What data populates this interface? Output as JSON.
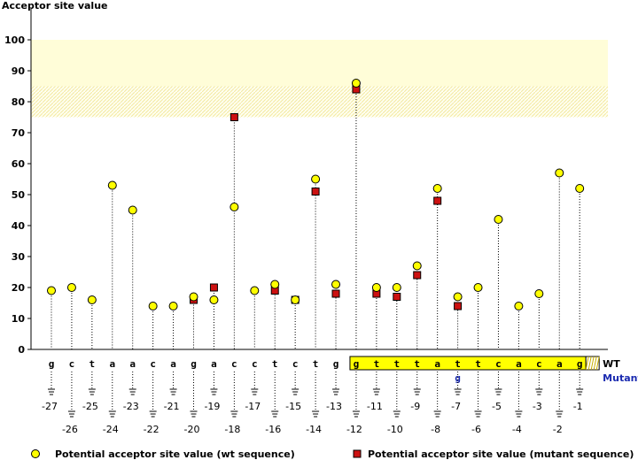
{
  "chart_data": {
    "type": "scatter",
    "title": "",
    "ylabel": "Acceptor site value",
    "xlabel": "",
    "ylim": [
      0,
      100
    ],
    "yticks": [
      0,
      10,
      20,
      30,
      40,
      50,
      60,
      70,
      80,
      90,
      100
    ],
    "highlight_bands": [
      {
        "from": 85,
        "to": 100,
        "style": "solid"
      },
      {
        "from": 75,
        "to": 85,
        "style": "hatched"
      }
    ],
    "positions": [
      -27,
      -26,
      -25,
      -24,
      -23,
      -22,
      -21,
      -20,
      -19,
      -18,
      -17,
      -16,
      -15,
      -14,
      -13,
      -12,
      -11,
      -10,
      -9,
      -8,
      -7,
      -6,
      -5,
      -4,
      -3,
      -2,
      -1
    ],
    "wt_sequence": [
      "g",
      "c",
      "t",
      "a",
      "a",
      "c",
      "a",
      "g",
      "a",
      "c",
      "c",
      "t",
      "c",
      "t",
      "g",
      "g",
      "t",
      "t",
      "t",
      "a",
      "t",
      "t",
      "c",
      "a",
      "c",
      "a",
      "g"
    ],
    "mutant_sequence": [
      "",
      "",
      "",
      "",
      "",
      "",
      "",
      "",
      "",
      "",
      "",
      "",
      "",
      "",
      "",
      "",
      "",
      "",
      "",
      "",
      "g",
      "",
      "",
      "",
      "",
      "",
      ""
    ],
    "series": [
      {
        "name": "Potential acceptor site value (wt sequence)",
        "marker": "circle",
        "color": "#ffff00",
        "values": [
          19,
          20,
          16,
          53,
          45,
          14,
          14,
          17,
          16,
          46,
          19,
          21,
          16,
          55,
          21,
          86,
          20,
          20,
          27,
          52,
          17,
          20,
          42,
          14,
          18,
          57,
          52
        ]
      },
      {
        "name": "Potential acceptor site value (mutant sequence)",
        "marker": "square",
        "color": "#cc1111",
        "values": [
          null,
          null,
          null,
          null,
          null,
          null,
          null,
          16,
          20,
          75,
          null,
          19,
          16,
          51,
          18,
          84,
          18,
          17,
          24,
          48,
          14,
          null,
          null,
          null,
          null,
          null,
          null
        ]
      }
    ],
    "row_labels": {
      "wt": "WT",
      "mutant": "Mutant"
    },
    "legend_position": "bottom"
  }
}
